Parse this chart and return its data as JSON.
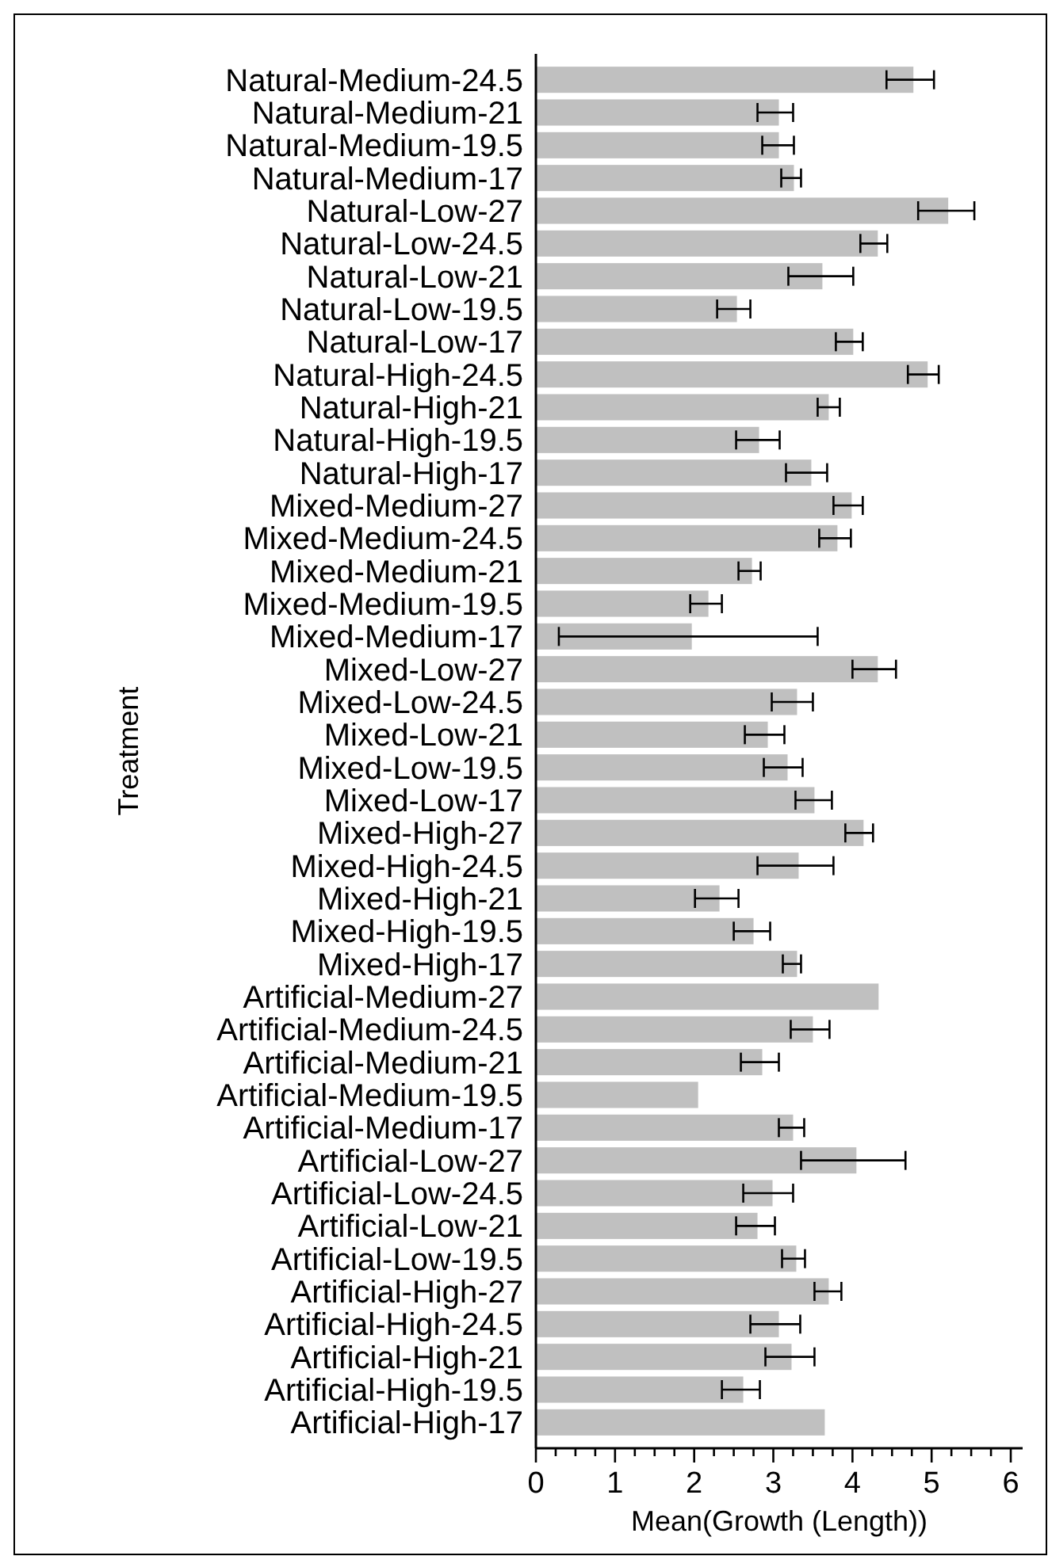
{
  "chart_data": {
    "type": "bar",
    "orientation": "horizontal",
    "xlabel": "Mean(Growth (Length))",
    "ylabel": "Treatment",
    "color": "#c0c0c0",
    "categories": [
      "Natural-Medium-24.5",
      "Natural-Medium-21",
      "Natural-Medium-19.5",
      "Natural-Medium-17",
      "Natural-Low-27",
      "Natural-Low-24.5",
      "Natural-Low-21",
      "Natural-Low-19.5",
      "Natural-Low-17",
      "Natural-High-24.5",
      "Natural-High-21",
      "Natural-High-19.5",
      "Natural-High-17",
      "Mixed-Medium-27",
      "Mixed-Medium-24.5",
      "Mixed-Medium-21",
      "Mixed-Medium-19.5",
      "Mixed-Medium-17",
      "Mixed-Low-27",
      "Mixed-Low-24.5",
      "Mixed-Low-21",
      "Mixed-Low-19.5",
      "Mixed-Low-17",
      "Mixed-High-27",
      "Mixed-High-24.5",
      "Mixed-High-21",
      "Mixed-High-19.5",
      "Mixed-High-17",
      "Artificial-Medium-27",
      "Artificial-Medium-24.5",
      "Artificial-Medium-21",
      "Artificial-Medium-19.5",
      "Artificial-Medium-17",
      "Artificial-Low-27",
      "Artificial-Low-24.5",
      "Artificial-Low-21",
      "Artificial-Low-19.5",
      "Artificial-High-27",
      "Artificial-High-24.5",
      "Artificial-High-21",
      "Artificial-High-19.5",
      "Artificial-High-17"
    ],
    "values": [
      4.77,
      3.07,
      3.07,
      3.26,
      5.21,
      4.32,
      3.62,
      2.54,
      4.01,
      4.95,
      3.7,
      2.82,
      3.48,
      3.99,
      3.81,
      2.73,
      2.18,
      1.97,
      4.32,
      3.3,
      2.93,
      3.18,
      3.52,
      4.14,
      3.32,
      2.32,
      2.75,
      3.3,
      4.33,
      3.5,
      2.86,
      2.05,
      3.25,
      4.05,
      2.99,
      2.8,
      3.29,
      3.7,
      3.07,
      3.23,
      2.62,
      3.65
    ],
    "errors": [
      [
        4.43,
        5.03
      ],
      [
        2.8,
        3.25
      ],
      [
        2.86,
        3.26
      ],
      [
        3.1,
        3.35
      ],
      [
        4.83,
        5.54
      ],
      [
        4.1,
        4.44
      ],
      [
        3.19,
        4.01
      ],
      [
        2.29,
        2.71
      ],
      [
        3.79,
        4.13
      ],
      [
        4.7,
        5.09
      ],
      [
        3.56,
        3.84
      ],
      [
        2.53,
        3.08
      ],
      [
        3.16,
        3.68
      ],
      [
        3.76,
        4.13
      ],
      [
        3.58,
        3.98
      ],
      [
        2.56,
        2.84
      ],
      [
        1.95,
        2.35
      ],
      [
        0.29,
        3.56
      ],
      [
        4.0,
        4.55
      ],
      [
        2.98,
        3.5
      ],
      [
        2.64,
        3.14
      ],
      [
        2.88,
        3.37
      ],
      [
        3.28,
        3.74
      ],
      [
        3.91,
        4.26
      ],
      [
        2.8,
        3.76
      ],
      [
        2.01,
        2.56
      ],
      [
        2.5,
        2.96
      ],
      [
        3.12,
        3.35
      ],
      null,
      [
        3.22,
        3.71
      ],
      [
        2.59,
        3.07
      ],
      null,
      [
        3.07,
        3.39
      ],
      [
        3.35,
        4.67
      ],
      [
        2.62,
        3.25
      ],
      [
        2.53,
        3.02
      ],
      [
        3.11,
        3.4
      ],
      [
        3.52,
        3.86
      ],
      [
        2.71,
        3.34
      ],
      [
        2.9,
        3.52
      ],
      [
        2.35,
        2.83
      ],
      null
    ],
    "xlim": [
      0,
      6.15
    ],
    "xticks": [
      0,
      {
        "value": 0.25,
        "label": null
      },
      {
        "value": 0.5,
        "label": null
      },
      {
        "value": 0.75,
        "label": null
      },
      1,
      {
        "value": 1.25,
        "label": null
      },
      {
        "value": 1.5,
        "label": null
      },
      {
        "value": 1.75,
        "label": null
      },
      2,
      {
        "value": 2.25,
        "label": null
      },
      {
        "value": 2.5,
        "label": null
      },
      {
        "value": 2.75,
        "label": null
      },
      3,
      {
        "value": 3.25,
        "label": null
      },
      {
        "value": 3.5,
        "label": null
      },
      {
        "value": 3.75,
        "label": null
      },
      4,
      {
        "value": 4.25,
        "label": null
      },
      {
        "value": 4.5,
        "label": null
      },
      {
        "value": 4.75,
        "label": null
      },
      5,
      {
        "value": 5.25,
        "label": null
      },
      {
        "value": 5.5,
        "label": null
      },
      {
        "value": 5.75,
        "label": null
      },
      6
    ],
    "grid": false
  }
}
